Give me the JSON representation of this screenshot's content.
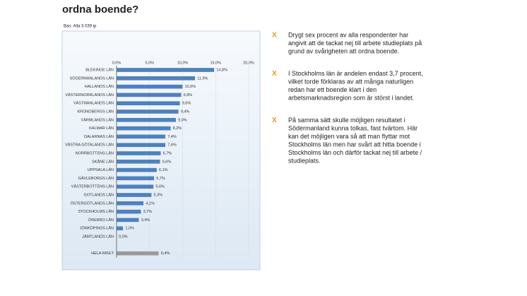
{
  "chart_data": {
    "type": "bar",
    "orientation": "horizontal",
    "title": "ordna boende?",
    "subtitle": "Bas: Alla 3 039 ip",
    "categories": [
      "BLEKINGE LÄN",
      "SÖDERMANLANDS LÄN",
      "HALLANDS LÄN",
      "VÄSTERNORRLANDS LÄN",
      "VÄSTMANLANDS LÄN",
      "KRONOBERGS LÄN",
      "VÄRMLANDS LÄN",
      "KALMAR LÄN",
      "DALARNAS LÄN",
      "VÄSTRA GÖTALANDS LÄN",
      "NORRBOTTENS LÄN",
      "SKÅNE LÄN",
      "UPPSALA LÄN",
      "GÄVLEBORGS LÄN",
      "VÄSTERBOTTENS LÄN",
      "GOTLANDS LÄN",
      "ÖSTERGÖTLANDS LÄN",
      "STOCKHOLMS LÄN",
      "ÖREBRO LÄN",
      "JÖNKÖPINGS LÄN",
      "JÄMTLANDS LÄN",
      null,
      "HELA RIKET"
    ],
    "values": [
      14.8,
      11.9,
      10.0,
      9.8,
      9.6,
      9.4,
      9.0,
      8.2,
      7.4,
      7.4,
      6.7,
      6.6,
      6.1,
      5.7,
      5.6,
      5.3,
      4.1,
      3.7,
      3.4,
      1.0,
      0.0,
      null,
      6.4
    ],
    "value_labels": [
      "14,8%",
      "11,9%",
      "10,0%",
      "9,8%",
      "9,6%",
      "9,4%",
      "9,0%",
      "8,2%",
      "7,4%",
      "7,4%",
      "6,7%",
      "6,6%",
      "6,1%",
      "5,7%",
      "5,6%",
      "5,3%",
      "4,1%",
      "3,7%",
      "3,4%",
      "1,0%",
      "0,0%",
      null,
      "6,4%"
    ],
    "colors": [
      "#4f81bd",
      "#4f81bd",
      "#4f81bd",
      "#4f81bd",
      "#4f81bd",
      "#4f81bd",
      "#4f81bd",
      "#4f81bd",
      "#4f81bd",
      "#4f81bd",
      "#4f81bd",
      "#4f81bd",
      "#4f81bd",
      "#4f81bd",
      "#4f81bd",
      "#4f81bd",
      "#4f81bd",
      "#4f81bd",
      "#4f81bd",
      "#4f81bd",
      "#4f81bd",
      null,
      "#9a9a9a"
    ],
    "xlim": [
      0,
      20
    ],
    "xticks": [
      {
        "value": 0,
        "label": "0,0%"
      },
      {
        "value": 5,
        "label": "5,0%"
      },
      {
        "value": 10,
        "label": "10,0%"
      },
      {
        "value": 15,
        "label": "15,0%"
      },
      {
        "value": 20,
        "label": "20,0%"
      }
    ],
    "grid": true
  },
  "bullets": [
    {
      "marker": "X",
      "lines": [
        "Drygt sex procent av alla respondenter har",
        "angivit att de tackat nej till arbete studieplats på",
        "grund av svårigheten att ordna boende."
      ]
    },
    {
      "marker": "X",
      "lines": [
        "I Stockholms län är andelen endast 3,7 procent,",
        "vilket torde förklaras av att många naturligen",
        "redan har ett boende klart i den",
        "arbetsmarknadsregion som är störst i landet."
      ]
    },
    {
      "marker": "X",
      "lines": [
        "På samma sätt skulle möjligen resultatet i",
        "Södermanland kunna tolkas, fast tvärtom. Här",
        "kan det möjligen vara så att man flyttar mot",
        "Stockholms län men har svårt att hitta boende i",
        "Stockholms län och därför tackat nej till arbete /",
        "studieplats."
      ]
    }
  ]
}
